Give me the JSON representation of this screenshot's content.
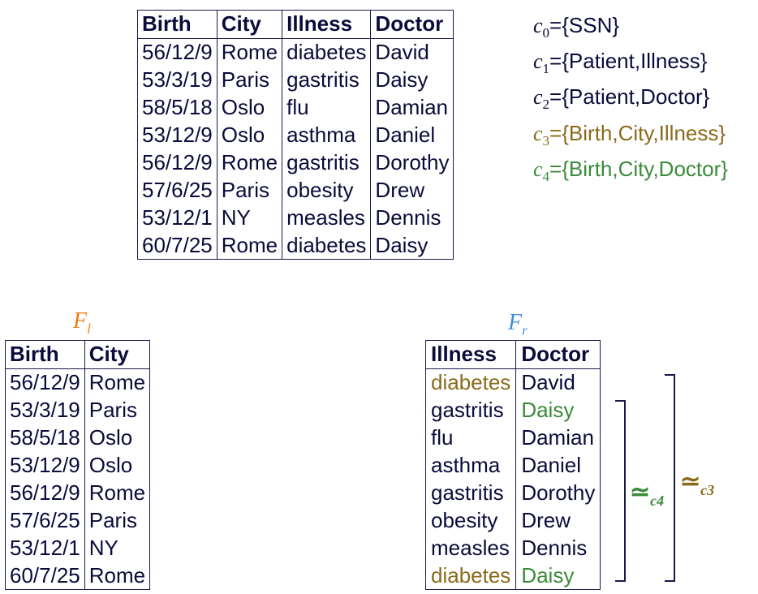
{
  "main_table": {
    "headers": [
      "Birth",
      "City",
      "Illness",
      "Doctor"
    ],
    "rows": [
      [
        "56/12/9",
        "Rome",
        "diabetes",
        "David"
      ],
      [
        "53/3/19",
        "Paris",
        "gastritis",
        "Daisy"
      ],
      [
        "58/5/18",
        "Oslo",
        "flu",
        "Damian"
      ],
      [
        "53/12/9",
        "Oslo",
        "asthma",
        "Daniel"
      ],
      [
        "56/12/9",
        "Rome",
        "gastritis",
        "Dorothy"
      ],
      [
        "57/6/25",
        "Paris",
        "obesity",
        "Drew"
      ],
      [
        "53/12/1",
        "NY",
        "measles",
        "Dennis"
      ],
      [
        "60/7/25",
        "Rome",
        "diabetes",
        "Daisy"
      ]
    ]
  },
  "constraints": [
    {
      "var": "c",
      "sub": "0",
      "eq": "=",
      "items": [
        "SSN"
      ],
      "color": "#0b0b3b"
    },
    {
      "var": "c",
      "sub": "1",
      "eq": "=",
      "items": [
        "Patient",
        "Illness"
      ],
      "color": "#0b0b3b"
    },
    {
      "var": "c",
      "sub": "2",
      "eq": "=",
      "items": [
        "Patient",
        "Doctor"
      ],
      "color": "#0b0b3b"
    },
    {
      "var": "c",
      "sub": "3",
      "eq": "=",
      "items": [
        "Birth",
        "City",
        "Illness"
      ],
      "color": "#8a6a1a"
    },
    {
      "var": "c",
      "sub": "4",
      "eq": "=",
      "items": [
        "Birth",
        "City",
        "Doctor"
      ],
      "color": "#3a8a3a"
    }
  ],
  "fl": {
    "title_var": "F",
    "title_sub": "l",
    "title_color": "#f07f17",
    "headers": [
      "Birth",
      "City"
    ],
    "rows": [
      [
        "56/12/9",
        "Rome"
      ],
      [
        "53/3/19",
        "Paris"
      ],
      [
        "58/5/18",
        "Oslo"
      ],
      [
        "53/12/9",
        "Oslo"
      ],
      [
        "56/12/9",
        "Rome"
      ],
      [
        "57/6/25",
        "Paris"
      ],
      [
        "53/12/1",
        "NY"
      ],
      [
        "60/7/25",
        "Rome"
      ]
    ]
  },
  "fr": {
    "title_var": "F",
    "title_sub": "r",
    "title_color": "#3e8ee0",
    "headers": [
      "Illness",
      "Doctor"
    ],
    "rows": [
      [
        "diabetes",
        "David"
      ],
      [
        "gastritis",
        "Daisy"
      ],
      [
        "flu",
        "Damian"
      ],
      [
        "asthma",
        "Daniel"
      ],
      [
        "gastritis",
        "Dorothy"
      ],
      [
        "obesity",
        "Drew"
      ],
      [
        "measles",
        "Dennis"
      ],
      [
        "diabetes",
        "Daisy"
      ]
    ],
    "highlights": [
      {
        "row": 0,
        "col": 0,
        "color": "#8a6a1a"
      },
      {
        "row": 7,
        "col": 0,
        "color": "#8a6a1a"
      },
      {
        "row": 1,
        "col": 1,
        "color": "#3a8a3a"
      },
      {
        "row": 7,
        "col": 1,
        "color": "#3a8a3a"
      }
    ]
  },
  "equivalences": [
    {
      "symbol": "≃",
      "sub": "c4",
      "color": "#3a8a3a"
    },
    {
      "symbol": "≃",
      "sub": "c3",
      "color": "#8a6a1a"
    }
  ],
  "colors": {
    "text": "#0b0b3b",
    "line": "#1a1a4a",
    "gold": "#8a6a1a",
    "green": "#3a8a3a"
  }
}
